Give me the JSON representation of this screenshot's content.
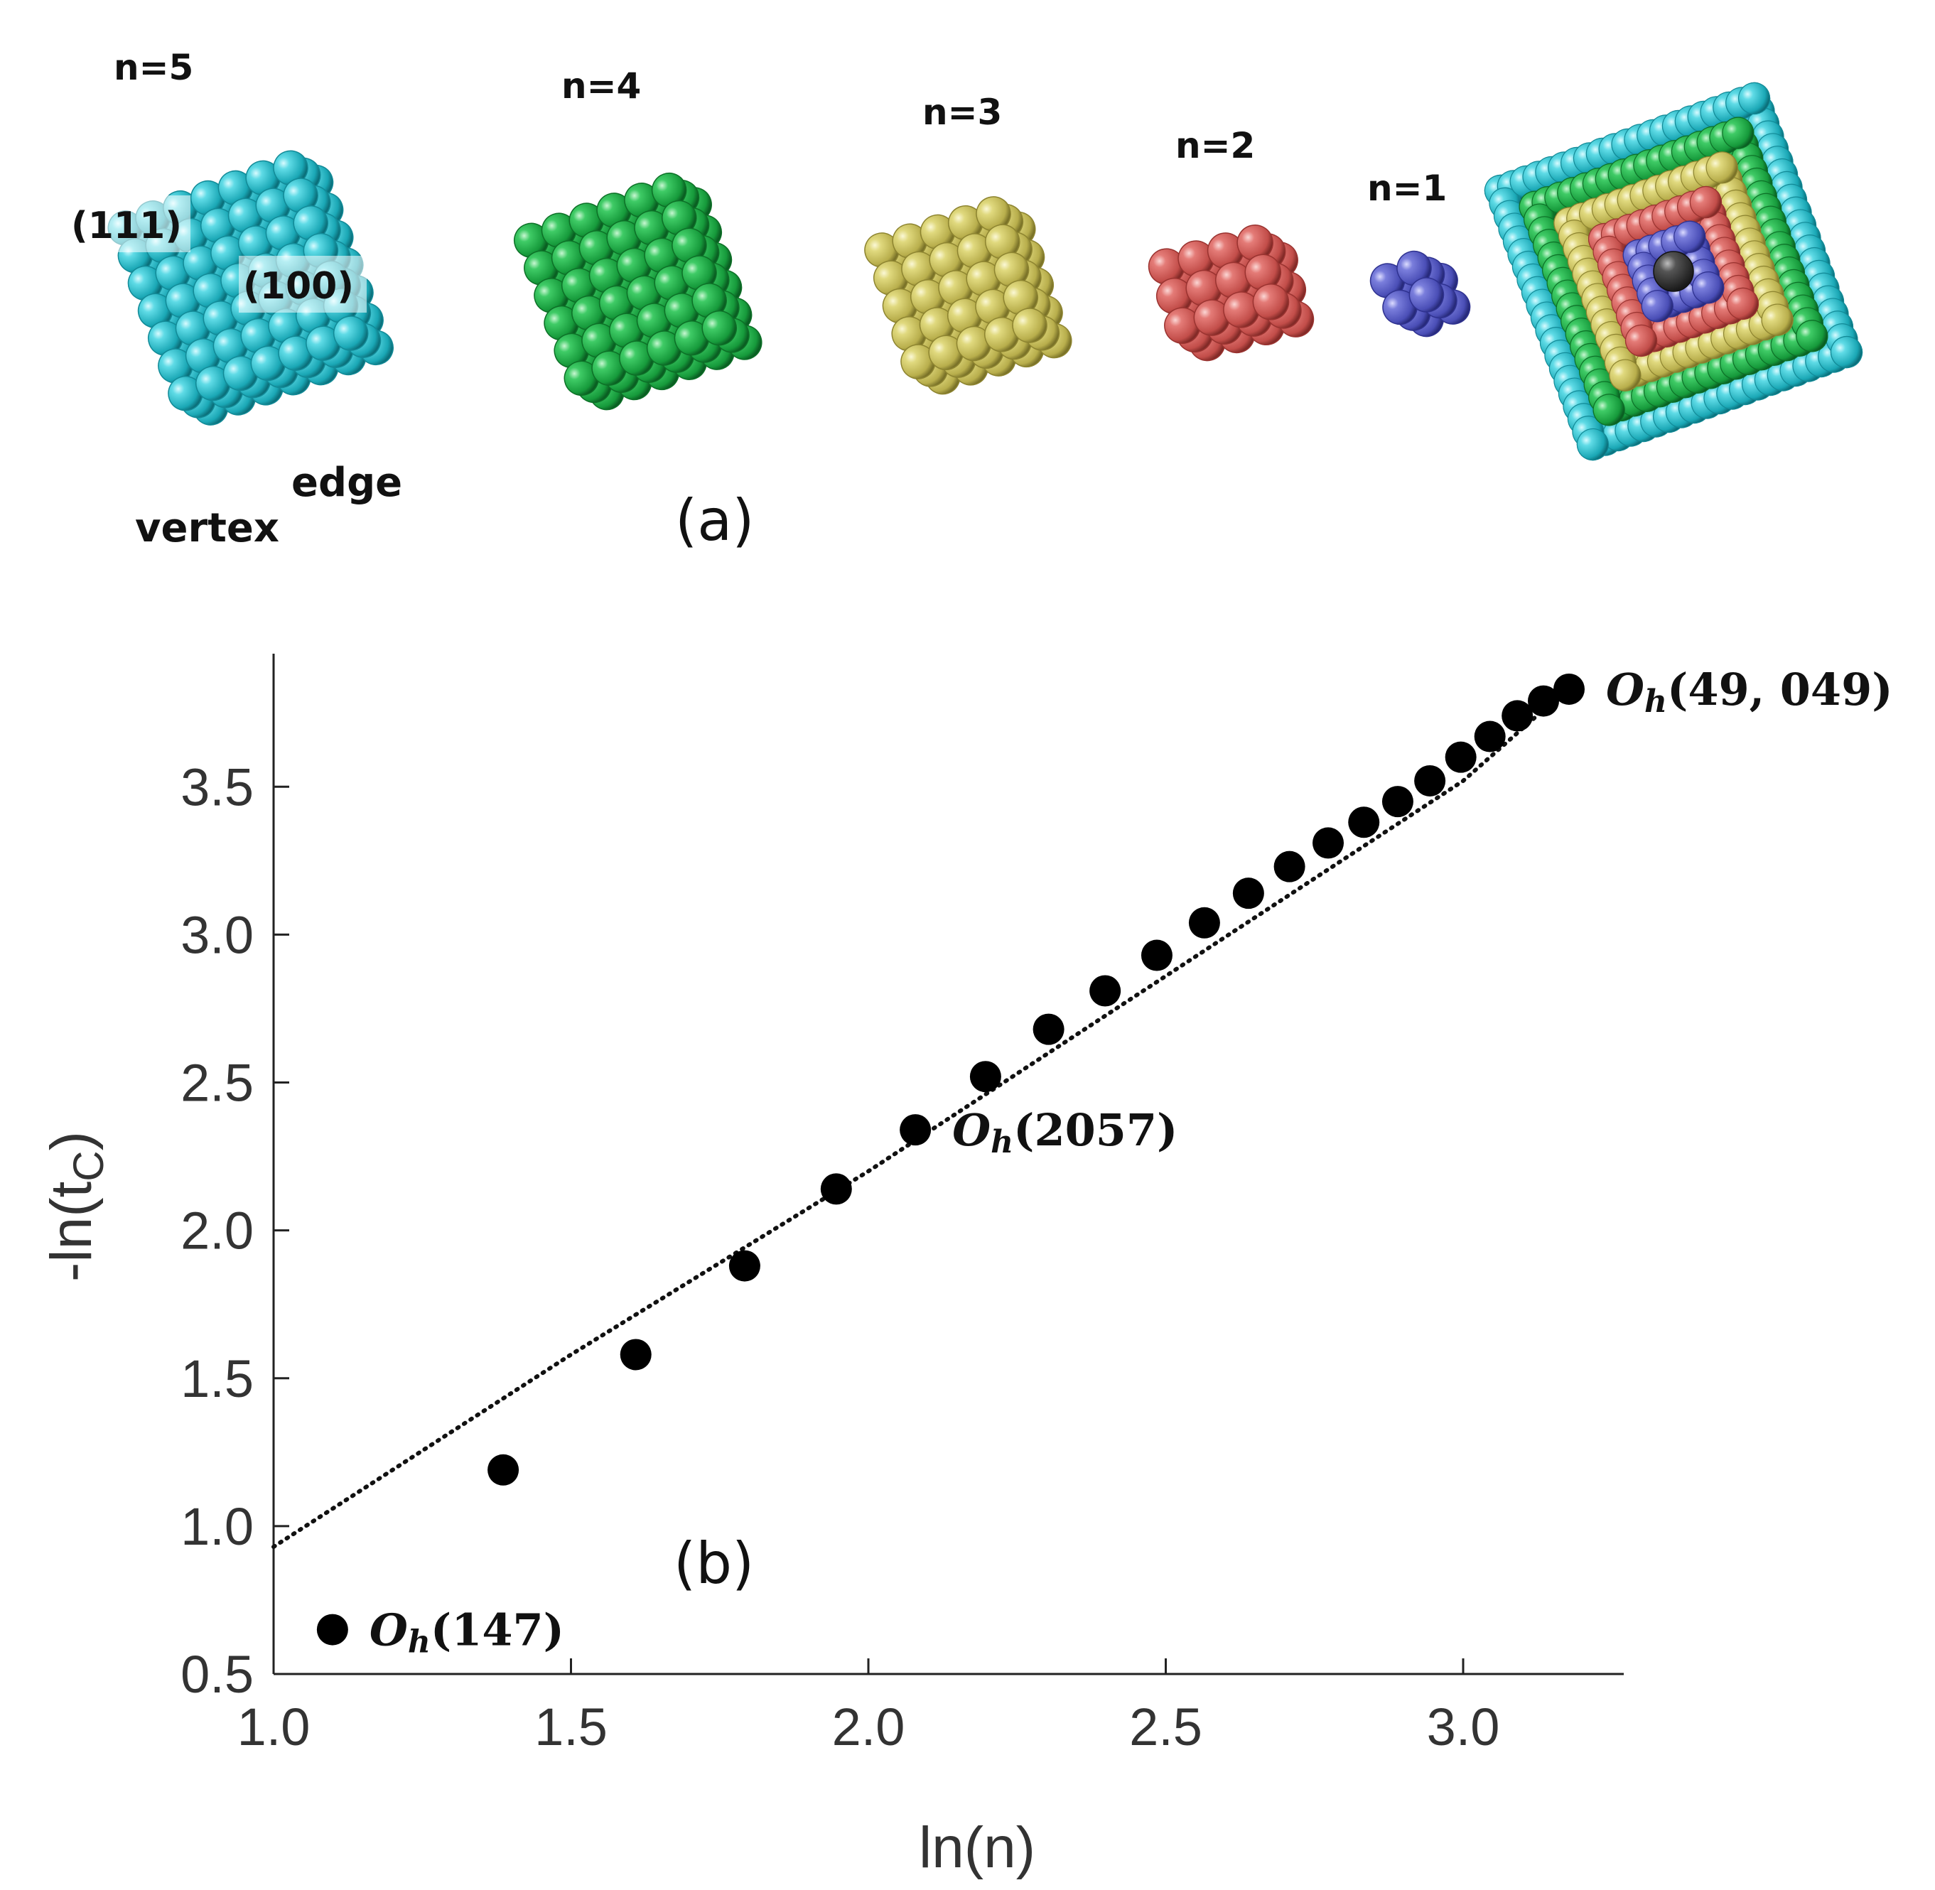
{
  "panel_a": {
    "letter": "(a)",
    "clusters": [
      {
        "label": "n=5",
        "color": "#2ec3cf",
        "shade": "#128a97"
      },
      {
        "label": "n=4",
        "color": "#1fae48",
        "shade": "#0d7027"
      },
      {
        "label": "n=3",
        "color": "#cdc463",
        "shade": "#8d8430"
      },
      {
        "label": "n=2",
        "color": "#d9625e",
        "shade": "#9a3330"
      },
      {
        "label": "n=1",
        "color": "#5b5fc7",
        "shade": "#2f3290"
      }
    ],
    "facet_111": "(111)",
    "facet_100": "(100)",
    "edge_label": "edge",
    "vertex_label": "vertex",
    "core_color": "#3a3a3a"
  },
  "panel_b": {
    "letter": "(b)"
  },
  "chart_data": {
    "type": "scatter",
    "xlabel": "ln(n)",
    "ylabel": "-ln(tC)",
    "ylabel_main": "-ln(t",
    "ylabel_sub": "C",
    "ylabel_close": ")",
    "xlim": [
      1.0,
      3.27
    ],
    "ylim": [
      0.5,
      3.95
    ],
    "xticks": [
      1.0,
      1.5,
      2.0,
      2.5,
      3.0
    ],
    "xtick_labels": [
      "1.0",
      "1.5",
      "2.0",
      "2.5",
      "3.0"
    ],
    "yticks": [
      0.5,
      1.0,
      1.5,
      2.0,
      2.5,
      3.0,
      3.5
    ],
    "ytick_labels": [
      "0.5",
      "1.0",
      "1.5",
      "2.0",
      "2.5",
      "3.0",
      "3.5"
    ],
    "points": [
      {
        "x": 1.099,
        "y": 0.65
      },
      {
        "x": 1.386,
        "y": 1.19
      },
      {
        "x": 1.609,
        "y": 1.58
      },
      {
        "x": 1.792,
        "y": 1.88
      },
      {
        "x": 1.946,
        "y": 2.14
      },
      {
        "x": 2.079,
        "y": 2.34
      },
      {
        "x": 2.197,
        "y": 2.52
      },
      {
        "x": 2.303,
        "y": 2.68
      },
      {
        "x": 2.398,
        "y": 2.81
      },
      {
        "x": 2.485,
        "y": 2.93
      },
      {
        "x": 2.565,
        "y": 3.04
      },
      {
        "x": 2.639,
        "y": 3.14
      },
      {
        "x": 2.708,
        "y": 3.23
      },
      {
        "x": 2.773,
        "y": 3.31
      },
      {
        "x": 2.833,
        "y": 3.38
      },
      {
        "x": 2.89,
        "y": 3.45
      },
      {
        "x": 2.944,
        "y": 3.52
      },
      {
        "x": 2.996,
        "y": 3.6
      },
      {
        "x": 3.045,
        "y": 3.67
      },
      {
        "x": 3.091,
        "y": 3.74
      },
      {
        "x": 3.135,
        "y": 3.79
      },
      {
        "x": 3.178,
        "y": 3.83
      }
    ],
    "fit_line": {
      "style": "dotted",
      "points": [
        {
          "x": 1.0,
          "y": 0.93
        },
        {
          "x": 1.5,
          "y": 1.58
        },
        {
          "x": 2.0,
          "y": 2.2
        },
        {
          "x": 2.5,
          "y": 2.86
        },
        {
          "x": 3.0,
          "y": 3.52
        },
        {
          "x": 3.18,
          "y": 3.84
        }
      ]
    },
    "annotations": [
      {
        "symbol": "O",
        "sub": "h",
        "text": "(147)",
        "x": 1.099,
        "y": 0.65
      },
      {
        "symbol": "O",
        "sub": "h",
        "text": "(2057)",
        "x": 2.079,
        "y": 2.34
      },
      {
        "symbol": "O",
        "sub": "h",
        "text": "(49, 049)",
        "x": 3.178,
        "y": 3.83
      }
    ],
    "marker_color": "#000000",
    "grid": false
  }
}
